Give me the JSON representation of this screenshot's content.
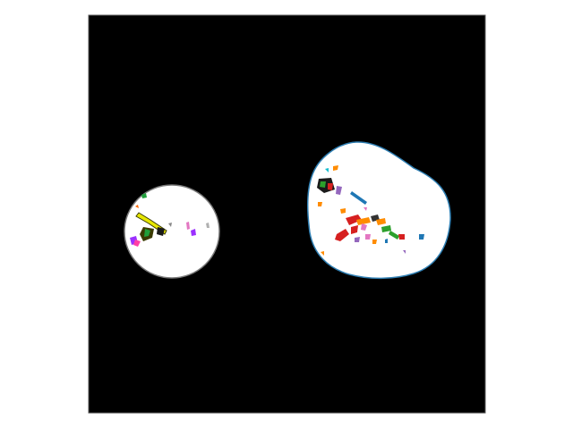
{
  "figure": {
    "background": "#ffffff",
    "panel_fill": "#000000",
    "panel_border": "#555555",
    "blobs": [
      {
        "name": "left-blob",
        "fill": "#ffffff",
        "outline": "#7a7a7a",
        "fragment_colors": [
          "#e6e600",
          "#3a3a00",
          "#9b30ff",
          "#ff3fa6",
          "#1f9e3a",
          "#ff6a00"
        ]
      },
      {
        "name": "right-blob",
        "fill": "#ffffff",
        "outline": "#2f7fb3",
        "fragment_colors": [
          "#d62020",
          "#ff8c00",
          "#2ca02c",
          "#1f77b4",
          "#9467bd",
          "#e377c2",
          "#17becf",
          "#333333"
        ]
      }
    ]
  }
}
